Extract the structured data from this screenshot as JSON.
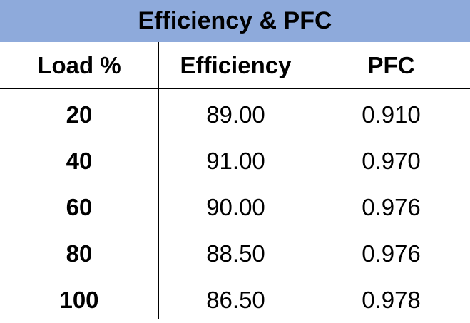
{
  "chart_data": {
    "type": "table",
    "title": "Efficiency & PFC",
    "columns": [
      "Load %",
      "Efficiency",
      "PFC"
    ],
    "rows": [
      [
        "20",
        "89.00",
        "0.910"
      ],
      [
        "40",
        "91.00",
        "0.970"
      ],
      [
        "60",
        "90.00",
        "0.976"
      ],
      [
        "80",
        "88.50",
        "0.976"
      ],
      [
        "100",
        "86.50",
        "0.978"
      ]
    ]
  },
  "colors": {
    "title_background": "#8eaadb",
    "text": "#000000",
    "divider": "#000000"
  }
}
